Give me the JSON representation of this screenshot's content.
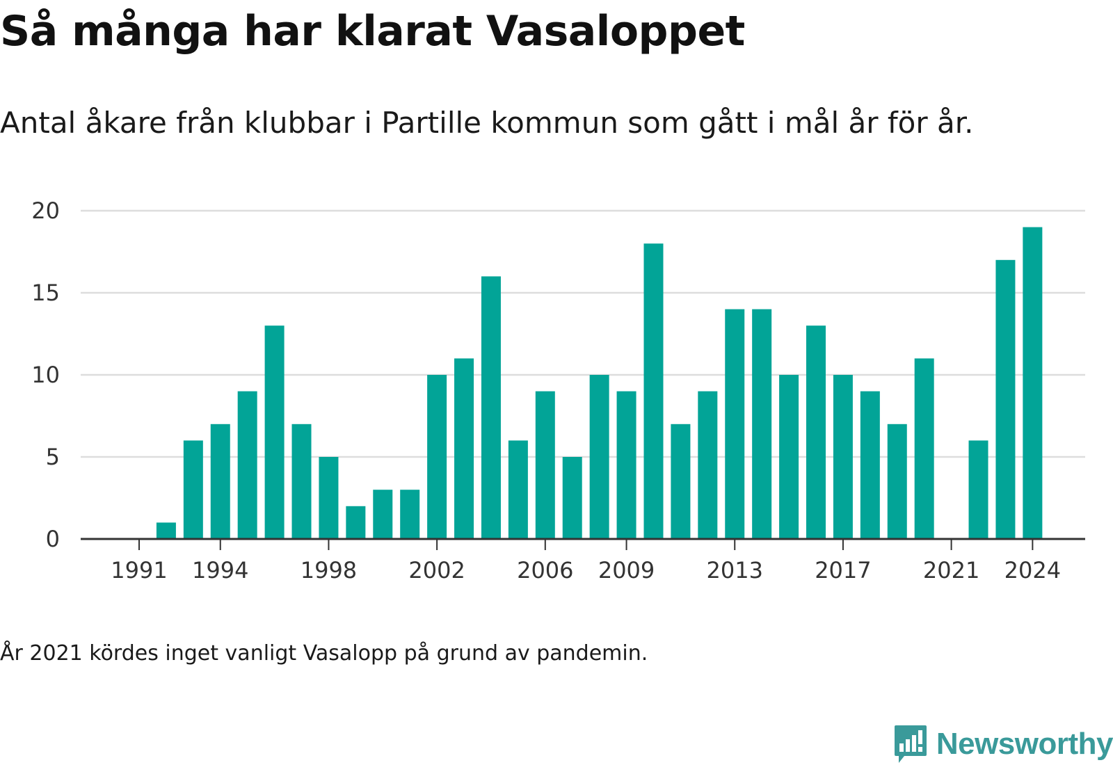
{
  "header": {
    "title": "Så många har klarat Vasaloppet",
    "subtitle": "Antal åkare från klubbar i Partille kommun som gått i mål år för år."
  },
  "footer": {
    "note": "År 2021 kördes inget vanligt Vasalopp på grund av pandemin.",
    "brand": "Newsworthy",
    "brand_icon": "newsworthy-logo-icon"
  },
  "colors": {
    "bar": "#02a497",
    "grid": "#dddddd",
    "axis": "#333333",
    "brand": "#3a9a9a"
  },
  "chart_data": {
    "type": "bar",
    "title": "Så många har klarat Vasaloppet",
    "subtitle": "Antal åkare från klubbar i Partille kommun som gått i mål år för år.",
    "xlabel": "",
    "ylabel": "",
    "ylim": [
      0,
      20
    ],
    "yticks": [
      0,
      5,
      10,
      15,
      20
    ],
    "xticks": [
      1991,
      1994,
      1998,
      2002,
      2006,
      2009,
      2013,
      2017,
      2021,
      2024
    ],
    "grid": true,
    "legend": "none",
    "categories": [
      1991,
      1992,
      1993,
      1994,
      1995,
      1996,
      1997,
      1998,
      1999,
      2000,
      2001,
      2002,
      2003,
      2004,
      2005,
      2006,
      2007,
      2008,
      2009,
      2010,
      2011,
      2012,
      2013,
      2014,
      2015,
      2016,
      2017,
      2018,
      2019,
      2020,
      2021,
      2022,
      2023,
      2024
    ],
    "values": [
      0,
      1,
      6,
      7,
      9,
      13,
      7,
      5,
      2,
      3,
      3,
      10,
      11,
      16,
      6,
      9,
      5,
      10,
      9,
      18,
      7,
      9,
      14,
      14,
      10,
      13,
      10,
      9,
      7,
      11,
      0,
      6,
      17,
      19
    ]
  }
}
